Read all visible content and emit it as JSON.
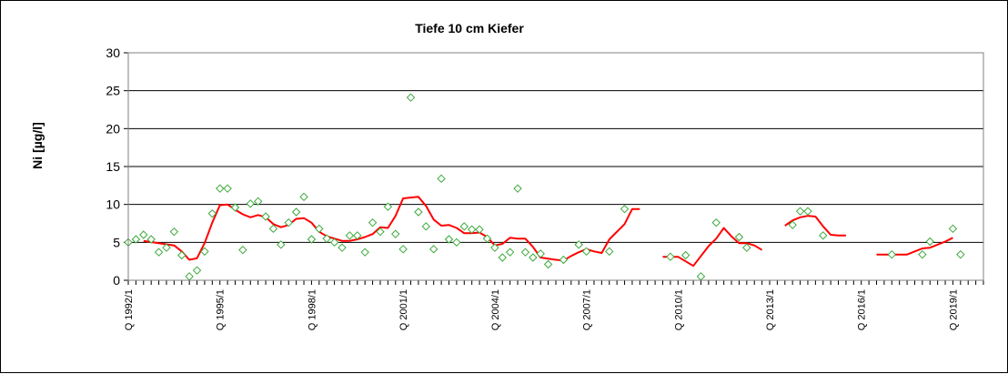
{
  "chart_data": {
    "type": "line",
    "title": "Tiefe  10 cm     Kiefer",
    "xlabel": "",
    "ylabel": "Ni [µg/l]",
    "ylim": [
      0,
      30
    ],
    "yticks": [
      0,
      5,
      10,
      15,
      20,
      25,
      30
    ],
    "grid": true,
    "legend": "none",
    "x_axis": {
      "start_year": 1992,
      "end_year": 2020,
      "quarters_per_year": 4
    },
    "xtick_labels": [
      "Q 1992/1",
      "Q 1995/1",
      "Q 1998/1",
      "Q 2001/1",
      "Q 2004/1",
      "Q 2007/1",
      "Q 2010/1",
      "Q 2013/1",
      "Q 2016/1",
      "Q 2019/1"
    ],
    "xtick_years": [
      1992,
      1995,
      1998,
      2001,
      2004,
      2007,
      2010,
      2013,
      2016,
      2019
    ],
    "series": [
      {
        "kind": "scatter",
        "color": "#3aa83a",
        "points": [
          [
            1992.0,
            5.0
          ],
          [
            1992.25,
            5.4
          ],
          [
            1992.5,
            6.0
          ],
          [
            1992.75,
            5.4
          ],
          [
            1993.0,
            3.7
          ],
          [
            1993.25,
            4.3
          ],
          [
            1993.5,
            6.4
          ],
          [
            1993.75,
            3.3
          ],
          [
            1994.0,
            0.5
          ],
          [
            1994.25,
            1.3
          ],
          [
            1994.5,
            3.8
          ],
          [
            1994.75,
            8.8
          ],
          [
            1995.0,
            12.1
          ],
          [
            1995.25,
            12.1
          ],
          [
            1995.5,
            9.6
          ],
          [
            1995.75,
            4.0
          ],
          [
            1996.0,
            10.1
          ],
          [
            1996.25,
            10.4
          ],
          [
            1996.5,
            8.4
          ],
          [
            1996.75,
            6.8
          ],
          [
            1997.0,
            4.7
          ],
          [
            1997.25,
            7.6
          ],
          [
            1997.5,
            9.0
          ],
          [
            1997.75,
            11.0
          ],
          [
            1998.0,
            5.4
          ],
          [
            1998.25,
            6.8
          ],
          [
            1998.5,
            5.5
          ],
          [
            1998.75,
            5.0
          ],
          [
            1999.0,
            4.3
          ],
          [
            1999.25,
            5.9
          ],
          [
            1999.5,
            5.9
          ],
          [
            1999.75,
            3.7
          ],
          [
            2000.0,
            7.6
          ],
          [
            2000.25,
            6.4
          ],
          [
            2000.5,
            9.7
          ],
          [
            2000.75,
            6.1
          ],
          [
            2001.0,
            4.1
          ],
          [
            2001.25,
            24.1
          ],
          [
            2001.5,
            9.0
          ],
          [
            2001.75,
            7.1
          ],
          [
            2002.0,
            4.1
          ],
          [
            2002.25,
            13.4
          ],
          [
            2002.5,
            5.4
          ],
          [
            2002.75,
            5.0
          ],
          [
            2003.0,
            7.1
          ],
          [
            2003.25,
            6.7
          ],
          [
            2003.5,
            6.7
          ],
          [
            2003.75,
            5.5
          ],
          [
            2004.0,
            4.3
          ],
          [
            2004.25,
            3.0
          ],
          [
            2004.5,
            3.7
          ],
          [
            2004.75,
            12.1
          ],
          [
            2005.0,
            3.7
          ],
          [
            2005.25,
            3.0
          ],
          [
            2005.5,
            3.5
          ],
          [
            2005.75,
            2.1
          ],
          [
            2006.25,
            2.7
          ],
          [
            2006.75,
            4.7
          ],
          [
            2007.0,
            3.8
          ],
          [
            2007.75,
            3.8
          ],
          [
            2008.25,
            9.4
          ],
          [
            2009.75,
            3.1
          ],
          [
            2010.25,
            3.3
          ],
          [
            2010.75,
            0.5
          ],
          [
            2011.25,
            7.6
          ],
          [
            2012.0,
            5.7
          ],
          [
            2012.25,
            4.3
          ],
          [
            2013.75,
            7.3
          ],
          [
            2014.0,
            9.1
          ],
          [
            2014.25,
            9.1
          ],
          [
            2014.75,
            5.9
          ],
          [
            2017.0,
            3.4
          ],
          [
            2018.0,
            3.4
          ],
          [
            2018.25,
            5.1
          ],
          [
            2019.0,
            6.8
          ],
          [
            2019.25,
            3.4
          ]
        ]
      },
      {
        "kind": "line",
        "color": "#ff0000",
        "segments": [
          [
            [
              1992.5,
              5.2
            ],
            [
              1993.0,
              4.9
            ],
            [
              1993.5,
              4.6
            ],
            [
              1993.75,
              3.8
            ],
            [
              1994.0,
              2.7
            ],
            [
              1994.25,
              2.9
            ],
            [
              1994.5,
              4.9
            ],
            [
              1994.75,
              7.6
            ],
            [
              1995.0,
              9.9
            ],
            [
              1995.25,
              10.0
            ],
            [
              1995.5,
              9.3
            ],
            [
              1995.75,
              8.7
            ],
            [
              1996.0,
              8.3
            ],
            [
              1996.25,
              8.6
            ],
            [
              1996.5,
              8.3
            ],
            [
              1996.75,
              7.4
            ],
            [
              1997.0,
              7.0
            ],
            [
              1997.25,
              7.3
            ],
            [
              1997.5,
              8.1
            ],
            [
              1997.75,
              8.2
            ],
            [
              1998.0,
              7.6
            ],
            [
              1998.25,
              6.4
            ],
            [
              1998.5,
              5.8
            ],
            [
              1998.75,
              5.5
            ],
            [
              1999.0,
              5.2
            ],
            [
              1999.25,
              5.2
            ],
            [
              1999.5,
              5.4
            ],
            [
              1999.75,
              5.7
            ],
            [
              2000.0,
              6.1
            ],
            [
              2000.25,
              7.0
            ],
            [
              2000.5,
              6.9
            ],
            [
              2000.75,
              8.5
            ],
            [
              2001.0,
              10.8
            ],
            [
              2001.5,
              11.0
            ],
            [
              2001.75,
              9.8
            ],
            [
              2002.0,
              8.0
            ],
            [
              2002.25,
              7.2
            ],
            [
              2002.5,
              7.3
            ],
            [
              2002.75,
              6.9
            ],
            [
              2003.0,
              6.2
            ],
            [
              2003.25,
              6.2
            ],
            [
              2003.5,
              6.3
            ],
            [
              2003.75,
              5.7
            ],
            [
              2004.0,
              4.6
            ],
            [
              2004.25,
              4.8
            ],
            [
              2004.5,
              5.6
            ],
            [
              2004.75,
              5.5
            ],
            [
              2005.0,
              5.5
            ],
            [
              2005.25,
              4.4
            ],
            [
              2005.5,
              3.0
            ],
            [
              2006.0,
              2.7
            ],
            [
              2006.25,
              2.6
            ],
            [
              2006.5,
              3.2
            ],
            [
              2006.75,
              3.7
            ],
            [
              2007.0,
              4.1
            ],
            [
              2007.25,
              3.8
            ],
            [
              2007.5,
              3.6
            ],
            [
              2007.75,
              5.4
            ],
            [
              2008.25,
              7.4
            ],
            [
              2008.5,
              9.4
            ],
            [
              2008.75,
              9.4
            ]
          ],
          [
            [
              2009.5,
              3.1
            ],
            [
              2009.75,
              3.1
            ],
            [
              2010.0,
              3.1
            ],
            [
              2010.25,
              2.5
            ],
            [
              2010.5,
              1.9
            ],
            [
              2011.0,
              4.5
            ],
            [
              2011.25,
              5.5
            ],
            [
              2011.5,
              6.9
            ],
            [
              2011.75,
              5.8
            ],
            [
              2012.0,
              4.9
            ],
            [
              2012.25,
              4.9
            ],
            [
              2012.5,
              4.6
            ],
            [
              2012.75,
              4.0
            ]
          ],
          [
            [
              2013.5,
              7.2
            ],
            [
              2013.75,
              7.9
            ],
            [
              2014.0,
              8.3
            ],
            [
              2014.25,
              8.5
            ],
            [
              2014.5,
              8.4
            ],
            [
              2014.75,
              7.1
            ],
            [
              2015.0,
              6.0
            ],
            [
              2015.25,
              5.9
            ],
            [
              2015.5,
              5.9
            ]
          ],
          [
            [
              2016.5,
              3.4
            ],
            [
              2016.75,
              3.4
            ],
            [
              2017.0,
              3.4
            ],
            [
              2017.25,
              3.4
            ],
            [
              2017.5,
              3.4
            ],
            [
              2017.75,
              3.8
            ],
            [
              2018.0,
              4.2
            ],
            [
              2018.25,
              4.3
            ],
            [
              2018.75,
              5.1
            ],
            [
              2019.0,
              5.6
            ]
          ]
        ]
      }
    ]
  }
}
